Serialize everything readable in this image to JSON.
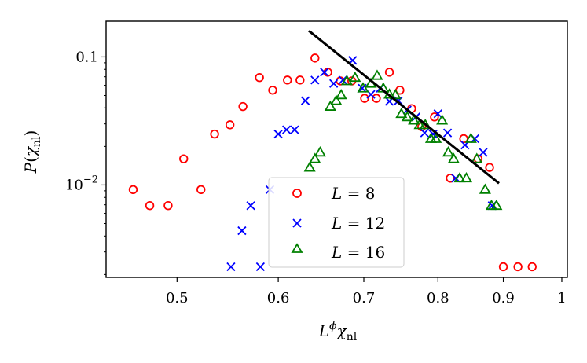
{
  "chart_data": {
    "type": "scatter",
    "xlabel": "L^φ χ_nl",
    "ylabel": "P(χ_nl)",
    "xscale": "log",
    "yscale": "log",
    "xlim": [
      0.44,
      1.01
    ],
    "ylim": [
      0.0019,
      0.19
    ],
    "x_ticks": [
      {
        "value": 0.5,
        "label": "0.5"
      },
      {
        "value": 0.6,
        "label": "0.6"
      },
      {
        "value": 0.7,
        "label": "0.7"
      },
      {
        "value": 0.8,
        "label": "0.8"
      },
      {
        "value": 0.9,
        "label": "0.9"
      },
      {
        "value": 1.0,
        "label": "1"
      }
    ],
    "y_major_ticks": [
      {
        "value": 0.01,
        "label": "10^{-2}"
      },
      {
        "value": 0.1,
        "label": "0.1"
      }
    ],
    "legend_position": "lower-center",
    "series": [
      {
        "name": "L = 8",
        "marker": "circle",
        "color": "#ff0000",
        "points": [
          [
            0.462,
            0.0092
          ],
          [
            0.476,
            0.0069
          ],
          [
            0.492,
            0.0069
          ],
          [
            0.506,
            0.016
          ],
          [
            0.522,
            0.0092
          ],
          [
            0.535,
            0.025
          ],
          [
            0.55,
            0.0295
          ],
          [
            0.563,
            0.041
          ],
          [
            0.58,
            0.069
          ],
          [
            0.594,
            0.055
          ],
          [
            0.61,
            0.066
          ],
          [
            0.624,
            0.066
          ],
          [
            0.641,
            0.098
          ],
          [
            0.656,
            0.076
          ],
          [
            0.671,
            0.065
          ],
          [
            0.685,
            0.065
          ],
          [
            0.701,
            0.0475
          ],
          [
            0.716,
            0.0475
          ],
          [
            0.733,
            0.076
          ],
          [
            0.747,
            0.055
          ],
          [
            0.763,
            0.0395
          ],
          [
            0.777,
            0.0285
          ],
          [
            0.795,
            0.034
          ],
          [
            0.818,
            0.0113
          ],
          [
            0.838,
            0.023
          ],
          [
            0.86,
            0.016
          ],
          [
            0.878,
            0.0137
          ],
          [
            0.9,
            0.0023
          ],
          [
            0.924,
            0.0023
          ],
          [
            0.948,
            0.0023
          ]
        ]
      },
      {
        "name": "L = 12",
        "marker": "x",
        "color": "#0000ff",
        "points": [
          [
            0.551,
            0.0023
          ],
          [
            0.562,
            0.0044
          ],
          [
            0.571,
            0.0069
          ],
          [
            0.581,
            0.0023
          ],
          [
            0.591,
            0.0092
          ],
          [
            0.6,
            0.025
          ],
          [
            0.609,
            0.027
          ],
          [
            0.618,
            0.027
          ],
          [
            0.63,
            0.0455
          ],
          [
            0.641,
            0.066
          ],
          [
            0.652,
            0.076
          ],
          [
            0.663,
            0.062
          ],
          [
            0.674,
            0.066
          ],
          [
            0.686,
            0.094
          ],
          [
            0.698,
            0.057
          ],
          [
            0.709,
            0.051
          ],
          [
            0.721,
            0.057
          ],
          [
            0.733,
            0.045
          ],
          [
            0.745,
            0.0455
          ],
          [
            0.757,
            0.0385
          ],
          [
            0.769,
            0.034
          ],
          [
            0.781,
            0.0255
          ],
          [
            0.793,
            0.025
          ],
          [
            0.8,
            0.036
          ],
          [
            0.814,
            0.0255
          ],
          [
            0.826,
            0.0113
          ],
          [
            0.84,
            0.0205
          ],
          [
            0.855,
            0.023
          ],
          [
            0.868,
            0.018
          ],
          [
            0.882,
            0.0069
          ]
        ]
      },
      {
        "name": "L = 16",
        "marker": "triangle",
        "color": "#008000",
        "points": [
          [
            0.635,
            0.0137
          ],
          [
            0.641,
            0.016
          ],
          [
            0.647,
            0.018
          ],
          [
            0.659,
            0.041
          ],
          [
            0.666,
            0.0455
          ],
          [
            0.672,
            0.0505
          ],
          [
            0.679,
            0.065
          ],
          [
            0.689,
            0.069
          ],
          [
            0.699,
            0.057
          ],
          [
            0.709,
            0.062
          ],
          [
            0.717,
            0.0715
          ],
          [
            0.725,
            0.057
          ],
          [
            0.733,
            0.051
          ],
          [
            0.741,
            0.0505
          ],
          [
            0.749,
            0.036
          ],
          [
            0.757,
            0.034
          ],
          [
            0.766,
            0.032
          ],
          [
            0.774,
            0.0295
          ],
          [
            0.782,
            0.0295
          ],
          [
            0.79,
            0.023
          ],
          [
            0.797,
            0.023
          ],
          [
            0.806,
            0.032
          ],
          [
            0.815,
            0.018
          ],
          [
            0.823,
            0.016
          ],
          [
            0.832,
            0.0113
          ],
          [
            0.842,
            0.0113
          ],
          [
            0.849,
            0.023
          ],
          [
            0.858,
            0.016
          ],
          [
            0.871,
            0.0092
          ],
          [
            0.881,
            0.0069
          ],
          [
            0.889,
            0.0069
          ]
        ]
      }
    ],
    "fit_line": {
      "color": "#000000",
      "points": [
        [
          0.634,
          0.16
        ],
        [
          0.893,
          0.0103
        ]
      ]
    }
  }
}
